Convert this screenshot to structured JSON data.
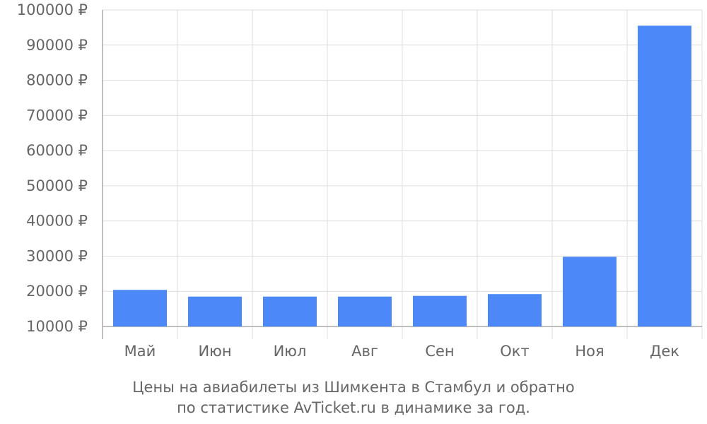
{
  "chart_data": {
    "type": "bar",
    "categories": [
      "Май",
      "Июн",
      "Июл",
      "Авг",
      "Сен",
      "Окт",
      "Ноя",
      "Дек"
    ],
    "values": [
      20400,
      18500,
      18500,
      18500,
      18700,
      19200,
      29800,
      95500
    ],
    "ylim": [
      10000,
      100000
    ],
    "yticks": [
      10000,
      20000,
      30000,
      40000,
      50000,
      60000,
      70000,
      80000,
      90000,
      100000
    ],
    "ytick_suffix": " ₽",
    "grid": true,
    "colors": {
      "bar": "#4d88f9",
      "grid": "#dddddd",
      "axis": "#aaaaaa",
      "text": "#666666"
    }
  },
  "caption": {
    "line1": "Цены на авиабилеты из Шимкента в Стамбул и обратно",
    "line2": "по статистике AvTicket.ru в динамике за год."
  }
}
